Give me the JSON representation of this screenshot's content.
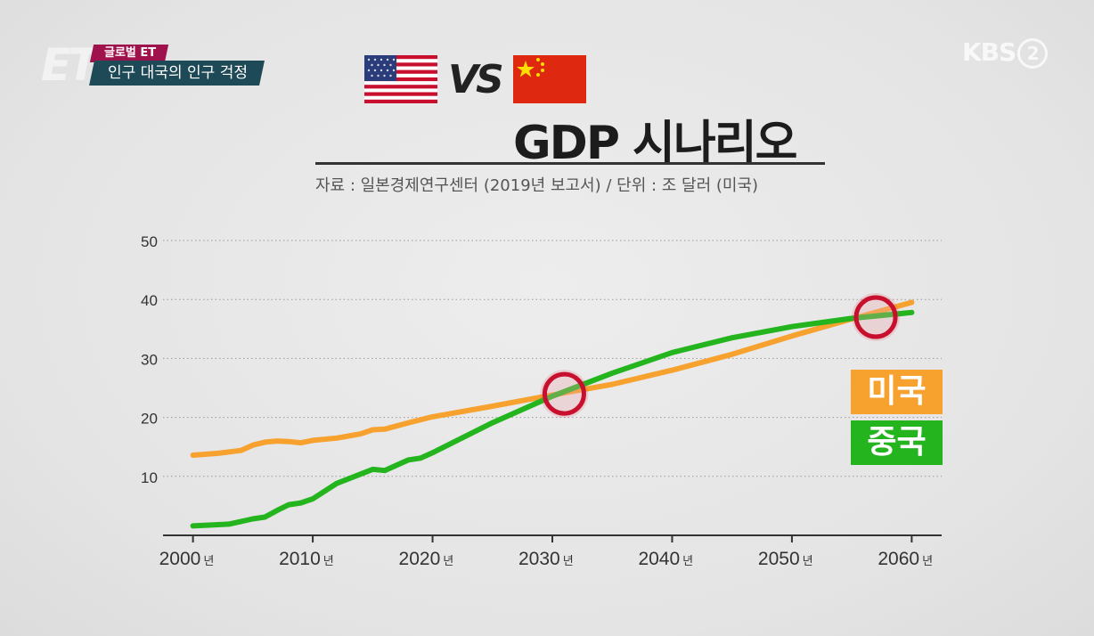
{
  "overlay": {
    "program_tag": "글로벌 ET",
    "topic": "인구 대국의 인구 걱정",
    "channel_logo": "KBS",
    "channel_number": "2",
    "corner_logo": "ET"
  },
  "header": {
    "vs_text": "VS",
    "title": "GDP 시나리오",
    "source": "자료 : 일본경제연구센터 (2019년 보고서) / 단위 : 조 달러 (미국)",
    "left_flag": "us-flag-icon",
    "right_flag": "china-flag-icon"
  },
  "colors": {
    "usa": "#f7a12f",
    "china": "#24b51e",
    "marker": "#c8102e"
  },
  "chart_data": {
    "type": "line",
    "title": "GDP 시나리오",
    "xlabel": "",
    "ylabel": "",
    "xlim": [
      1997.5,
      2062.5
    ],
    "ylim": [
      0,
      50
    ],
    "y_ticks": [
      10,
      20,
      30,
      40,
      50
    ],
    "x_ticks": [
      2000,
      2010,
      2020,
      2030,
      2040,
      2050,
      2060
    ],
    "x_tick_labels": [
      "2000",
      "2010",
      "2020",
      "2030",
      "2040",
      "2050",
      "2060"
    ],
    "x_tick_suffix": "년",
    "grid": "horizontal-dotted",
    "legend_position": "right",
    "series": [
      {
        "name": "미국",
        "color": "#f7a12f",
        "x": [
          2000,
          2002,
          2004,
          2005,
          2006,
          2007,
          2008,
          2009,
          2010,
          2012,
          2014,
          2015,
          2016,
          2018,
          2020,
          2025,
          2030,
          2035,
          2040,
          2045,
          2050,
          2055,
          2060
        ],
        "values": [
          13.6,
          13.9,
          14.4,
          15.3,
          15.8,
          16,
          15.9,
          15.7,
          16.1,
          16.5,
          17.2,
          17.9,
          18,
          19.1,
          20.1,
          21.9,
          23.8,
          25.6,
          28,
          30.7,
          33.8,
          36.7,
          39.5
        ]
      },
      {
        "name": "중국",
        "color": "#24b51e",
        "x": [
          2000,
          2003,
          2005,
          2006,
          2007,
          2008,
          2009,
          2010,
          2012,
          2014,
          2015,
          2016,
          2017,
          2018,
          2019,
          2020,
          2025,
          2030,
          2035,
          2040,
          2045,
          2050,
          2055,
          2060
        ],
        "values": [
          1.6,
          1.9,
          2.8,
          3.1,
          4.2,
          5.2,
          5.5,
          6.2,
          8.8,
          10.4,
          11.2,
          11,
          11.9,
          12.8,
          13.1,
          14,
          19.1,
          23.6,
          27.5,
          31,
          33.5,
          35.4,
          36.8,
          37.8
        ]
      }
    ],
    "annotations": [
      {
        "type": "circle-marker",
        "x": 2031,
        "y": 24
      },
      {
        "type": "circle-marker",
        "x": 2057,
        "y": 37
      }
    ]
  }
}
